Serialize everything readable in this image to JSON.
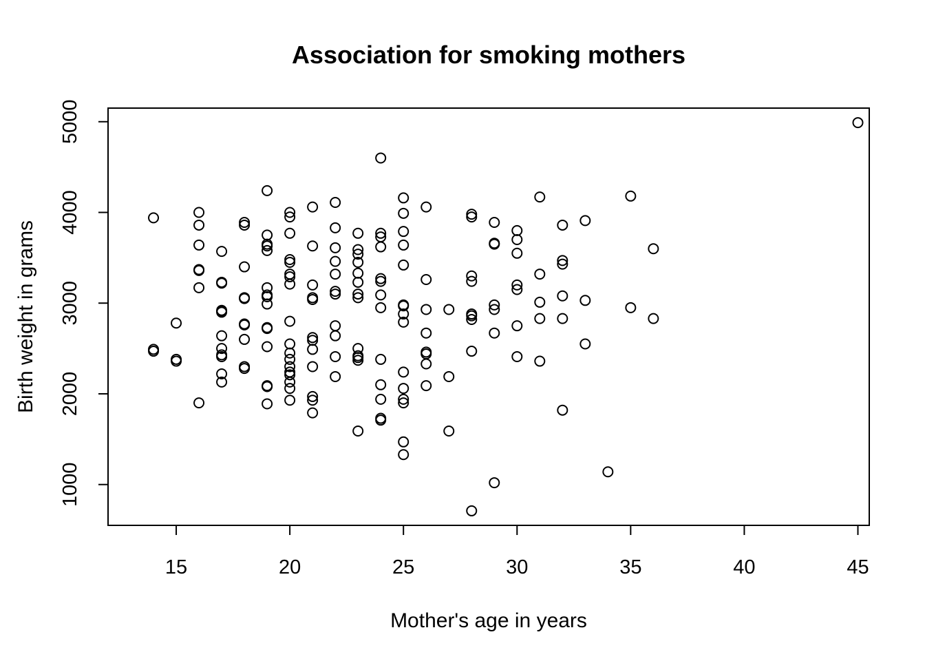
{
  "chart_data": {
    "type": "scatter",
    "title": "Association for smoking mothers",
    "xlabel": "Mother's age in years",
    "ylabel": "Birth weight in grams",
    "xlim": [
      12,
      45.5
    ],
    "ylim": [
      550,
      5150
    ],
    "xticks": [
      15,
      20,
      25,
      30,
      35,
      40,
      45
    ],
    "yticks": [
      1000,
      2000,
      3000,
      4000,
      5000
    ],
    "grid": false,
    "marker": "open-circle",
    "points": [
      [
        14,
        3940
      ],
      [
        14,
        2490
      ],
      [
        14,
        2470
      ],
      [
        15,
        2780
      ],
      [
        15,
        2380
      ],
      [
        15,
        2360
      ],
      [
        16,
        4000
      ],
      [
        16,
        3860
      ],
      [
        16,
        3640
      ],
      [
        16,
        3370
      ],
      [
        16,
        3360
      ],
      [
        16,
        3170
      ],
      [
        16,
        1900
      ],
      [
        17,
        3570
      ],
      [
        17,
        3230
      ],
      [
        17,
        3220
      ],
      [
        17,
        2920
      ],
      [
        17,
        2910
      ],
      [
        17,
        2900
      ],
      [
        17,
        2640
      ],
      [
        17,
        2500
      ],
      [
        17,
        2430
      ],
      [
        17,
        2410
      ],
      [
        17,
        2220
      ],
      [
        17,
        2130
      ],
      [
        18,
        3890
      ],
      [
        18,
        3860
      ],
      [
        18,
        3400
      ],
      [
        18,
        3060
      ],
      [
        18,
        3050
      ],
      [
        18,
        2770
      ],
      [
        18,
        2760
      ],
      [
        18,
        2600
      ],
      [
        18,
        2300
      ],
      [
        18,
        2280
      ],
      [
        19,
        4240
      ],
      [
        19,
        3750
      ],
      [
        19,
        3650
      ],
      [
        19,
        3630
      ],
      [
        19,
        3580
      ],
      [
        19,
        3170
      ],
      [
        19,
        3090
      ],
      [
        19,
        3070
      ],
      [
        19,
        2990
      ],
      [
        19,
        2730
      ],
      [
        19,
        2720
      ],
      [
        19,
        2520
      ],
      [
        19,
        2090
      ],
      [
        19,
        2080
      ],
      [
        19,
        1890
      ],
      [
        20,
        4000
      ],
      [
        20,
        3950
      ],
      [
        20,
        3770
      ],
      [
        20,
        3480
      ],
      [
        20,
        3450
      ],
      [
        20,
        3320
      ],
      [
        20,
        3290
      ],
      [
        20,
        3210
      ],
      [
        20,
        2800
      ],
      [
        20,
        2550
      ],
      [
        20,
        2450
      ],
      [
        20,
        2380
      ],
      [
        20,
        2300
      ],
      [
        20,
        2240
      ],
      [
        20,
        2210
      ],
      [
        20,
        2130
      ],
      [
        20,
        2060
      ],
      [
        20,
        1930
      ],
      [
        21,
        4060
      ],
      [
        21,
        3630
      ],
      [
        21,
        3200
      ],
      [
        21,
        3060
      ],
      [
        21,
        3040
      ],
      [
        21,
        2620
      ],
      [
        21,
        2590
      ],
      [
        21,
        2490
      ],
      [
        21,
        2300
      ],
      [
        21,
        1970
      ],
      [
        21,
        1930
      ],
      [
        21,
        1790
      ],
      [
        22,
        4110
      ],
      [
        22,
        3830
      ],
      [
        22,
        3610
      ],
      [
        22,
        3460
      ],
      [
        22,
        3320
      ],
      [
        22,
        3130
      ],
      [
        22,
        3100
      ],
      [
        22,
        2750
      ],
      [
        22,
        2640
      ],
      [
        22,
        2410
      ],
      [
        22,
        2190
      ],
      [
        23,
        3770
      ],
      [
        23,
        3590
      ],
      [
        23,
        3540
      ],
      [
        23,
        3450
      ],
      [
        23,
        3330
      ],
      [
        23,
        3230
      ],
      [
        23,
        3100
      ],
      [
        23,
        3060
      ],
      [
        23,
        2500
      ],
      [
        23,
        2420
      ],
      [
        23,
        2400
      ],
      [
        23,
        2370
      ],
      [
        23,
        1590
      ],
      [
        24,
        4600
      ],
      [
        24,
        3770
      ],
      [
        24,
        3730
      ],
      [
        24,
        3620
      ],
      [
        24,
        3270
      ],
      [
        24,
        3240
      ],
      [
        24,
        3090
      ],
      [
        24,
        2950
      ],
      [
        24,
        2380
      ],
      [
        24,
        2100
      ],
      [
        24,
        1940
      ],
      [
        24,
        1730
      ],
      [
        24,
        1710
      ],
      [
        25,
        4160
      ],
      [
        25,
        3990
      ],
      [
        25,
        3790
      ],
      [
        25,
        3640
      ],
      [
        25,
        3420
      ],
      [
        25,
        2980
      ],
      [
        25,
        2970
      ],
      [
        25,
        2880
      ],
      [
        25,
        2790
      ],
      [
        25,
        2240
      ],
      [
        25,
        2060
      ],
      [
        25,
        1940
      ],
      [
        25,
        1900
      ],
      [
        25,
        1470
      ],
      [
        25,
        1330
      ],
      [
        26,
        4060
      ],
      [
        26,
        3260
      ],
      [
        26,
        2930
      ],
      [
        26,
        2670
      ],
      [
        26,
        2460
      ],
      [
        26,
        2440
      ],
      [
        26,
        2330
      ],
      [
        26,
        2090
      ],
      [
        27,
        2930
      ],
      [
        27,
        2190
      ],
      [
        27,
        1590
      ],
      [
        28,
        3980
      ],
      [
        28,
        3950
      ],
      [
        28,
        3300
      ],
      [
        28,
        3240
      ],
      [
        28,
        2880
      ],
      [
        28,
        2860
      ],
      [
        28,
        2820
      ],
      [
        28,
        2470
      ],
      [
        28,
        710
      ],
      [
        29,
        3890
      ],
      [
        29,
        3660
      ],
      [
        29,
        3650
      ],
      [
        29,
        2980
      ],
      [
        29,
        2930
      ],
      [
        29,
        2670
      ],
      [
        29,
        1020
      ],
      [
        30,
        3800
      ],
      [
        30,
        3700
      ],
      [
        30,
        3550
      ],
      [
        30,
        3200
      ],
      [
        30,
        3150
      ],
      [
        30,
        2750
      ],
      [
        30,
        2410
      ],
      [
        31,
        4170
      ],
      [
        31,
        3320
      ],
      [
        31,
        3010
      ],
      [
        31,
        2830
      ],
      [
        31,
        2360
      ],
      [
        32,
        3860
      ],
      [
        32,
        3470
      ],
      [
        32,
        3430
      ],
      [
        32,
        3080
      ],
      [
        32,
        2830
      ],
      [
        32,
        1820
      ],
      [
        33,
        3910
      ],
      [
        33,
        3030
      ],
      [
        33,
        2550
      ],
      [
        34,
        1140
      ],
      [
        35,
        4180
      ],
      [
        35,
        2950
      ],
      [
        36,
        3600
      ],
      [
        36,
        2830
      ],
      [
        45,
        4990
      ]
    ]
  }
}
